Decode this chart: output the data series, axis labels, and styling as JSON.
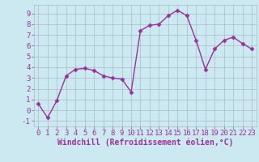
{
  "x": [
    0,
    1,
    2,
    3,
    4,
    5,
    6,
    7,
    8,
    9,
    10,
    11,
    12,
    13,
    14,
    15,
    16,
    17,
    18,
    19,
    20,
    21,
    22,
    23
  ],
  "y": [
    0.6,
    -0.7,
    0.9,
    3.2,
    3.8,
    3.9,
    3.7,
    3.2,
    3.0,
    2.9,
    1.7,
    7.4,
    7.9,
    8.0,
    8.8,
    9.3,
    8.8,
    6.5,
    3.8,
    5.7,
    6.5,
    6.8,
    6.2,
    5.7
  ],
  "line_color": "#993399",
  "marker": "D",
  "marker_size": 2.5,
  "linewidth": 1.0,
  "bg_color": "#cce8f0",
  "grid_color": "#aabbcc",
  "xlim": [
    -0.5,
    23.5
  ],
  "ylim": [
    -1.5,
    9.8
  ],
  "yticks": [
    -1,
    0,
    1,
    2,
    3,
    4,
    5,
    6,
    7,
    8,
    9
  ],
  "xticks": [
    0,
    1,
    2,
    3,
    4,
    5,
    6,
    7,
    8,
    9,
    10,
    11,
    12,
    13,
    14,
    15,
    16,
    17,
    18,
    19,
    20,
    21,
    22,
    23
  ],
  "xlabel": "Windchill (Refroidissement éolien,°C)",
  "xlabel_fontsize": 7,
  "tick_fontsize": 6.5,
  "title": ""
}
